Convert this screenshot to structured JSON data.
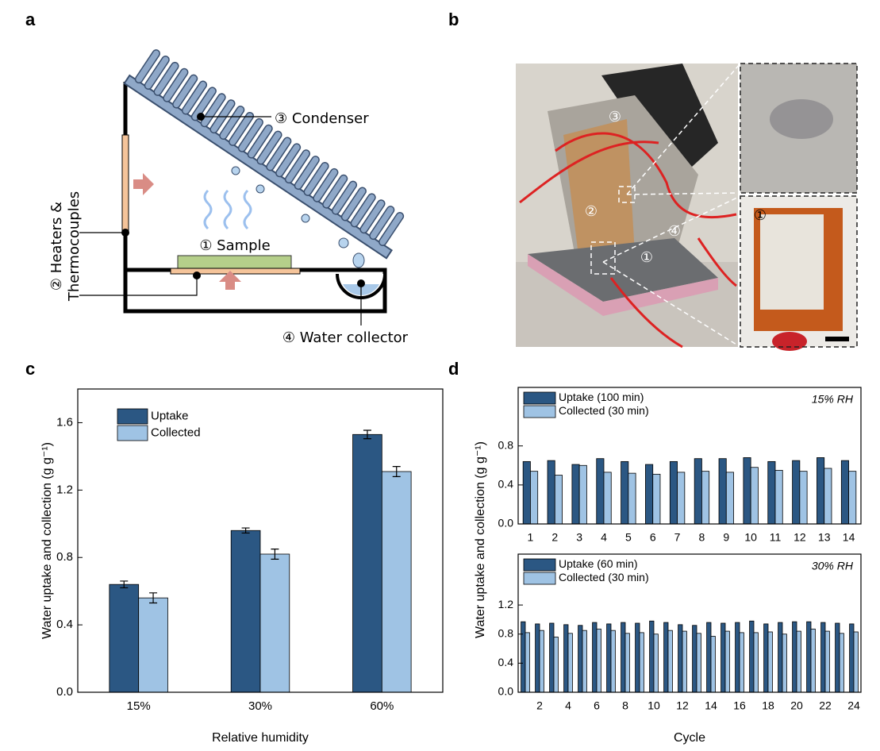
{
  "panel_labels": [
    "a",
    "b",
    "c",
    "d"
  ],
  "diagram": {
    "labels": [
      "① Sample",
      "② Heaters &",
      "Thermocouples",
      "③ Condenser",
      "④ Water collector"
    ]
  },
  "photo": {
    "labels": [
      "③",
      "②",
      "④",
      "①",
      "①"
    ]
  },
  "panel_d_ylabel": "Water uptake and collection (g g⁻¹)",
  "chart_data": [
    {
      "type": "bar",
      "xlabel": "Relative humidity",
      "ylabel": "Water uptake and collection (g g⁻¹)",
      "categories": [
        "15%",
        "30%",
        "60%"
      ],
      "series": [
        {
          "name": "Uptake",
          "color": "#2b5783",
          "values": [
            0.64,
            0.96,
            1.53
          ],
          "errors": [
            0.02,
            0.015,
            0.025
          ]
        },
        {
          "name": "Collected",
          "color": "#9fc3e4",
          "values": [
            0.56,
            0.82,
            1.31
          ],
          "errors": [
            0.03,
            0.03,
            0.03
          ]
        }
      ],
      "ylim": [
        0,
        1.8
      ],
      "yticks": [
        {
          "value": 0,
          "label": "0.0"
        },
        0.4,
        0.8,
        1.2,
        1.6
      ],
      "legend": "upper left"
    },
    {
      "type": "bar",
      "annotation": "15% RH",
      "categories": [
        1,
        2,
        3,
        4,
        5,
        6,
        7,
        8,
        9,
        10,
        11,
        12,
        13,
        14
      ],
      "series": [
        {
          "name": "Uptake (100 min)",
          "color": "#2b5783",
          "values": [
            0.64,
            0.65,
            0.61,
            0.67,
            0.64,
            0.61,
            0.64,
            0.67,
            0.67,
            0.68,
            0.64,
            0.65,
            0.68,
            0.65
          ]
        },
        {
          "name": "Collected (30 min)",
          "color": "#9fc3e4",
          "values": [
            0.54,
            0.5,
            0.6,
            0.53,
            0.52,
            0.51,
            0.53,
            0.54,
            0.53,
            0.58,
            0.55,
            0.54,
            0.57,
            0.54
          ]
        }
      ],
      "ylim": [
        0,
        1.4
      ],
      "yticks": [
        {
          "value": 0,
          "label": "0.0"
        },
        0.4,
        0.8
      ],
      "legend": "upper left"
    },
    {
      "type": "bar",
      "annotation": "30% RH",
      "xlabel": "Cycle",
      "categories": [
        null,
        2,
        null,
        4,
        null,
        6,
        null,
        8,
        null,
        10,
        null,
        12,
        null,
        14,
        null,
        16,
        null,
        18,
        null,
        20,
        null,
        22,
        null,
        24
      ],
      "series": [
        {
          "name": "Uptake (60 min)",
          "color": "#2b5783",
          "values": [
            0.97,
            0.94,
            0.95,
            0.93,
            0.92,
            0.96,
            0.94,
            0.96,
            0.95,
            0.98,
            0.96,
            0.93,
            0.92,
            0.96,
            0.95,
            0.96,
            0.98,
            0.94,
            0.96,
            0.97,
            0.97,
            0.96,
            0.95,
            0.94
          ]
        },
        {
          "name": "Collected (30 min)",
          "color": "#9fc3e4",
          "values": [
            0.82,
            0.85,
            0.76,
            0.81,
            0.85,
            0.87,
            0.85,
            0.81,
            0.82,
            0.8,
            0.85,
            0.84,
            0.81,
            0.77,
            0.84,
            0.82,
            0.82,
            0.83,
            0.8,
            0.84,
            0.87,
            0.84,
            0.81,
            0.83
          ]
        }
      ],
      "ylim": [
        0,
        1.9
      ],
      "yticks": [
        {
          "value": 0,
          "label": "0.0"
        },
        0.4,
        0.8,
        1.2
      ],
      "legend": "upper left"
    }
  ]
}
